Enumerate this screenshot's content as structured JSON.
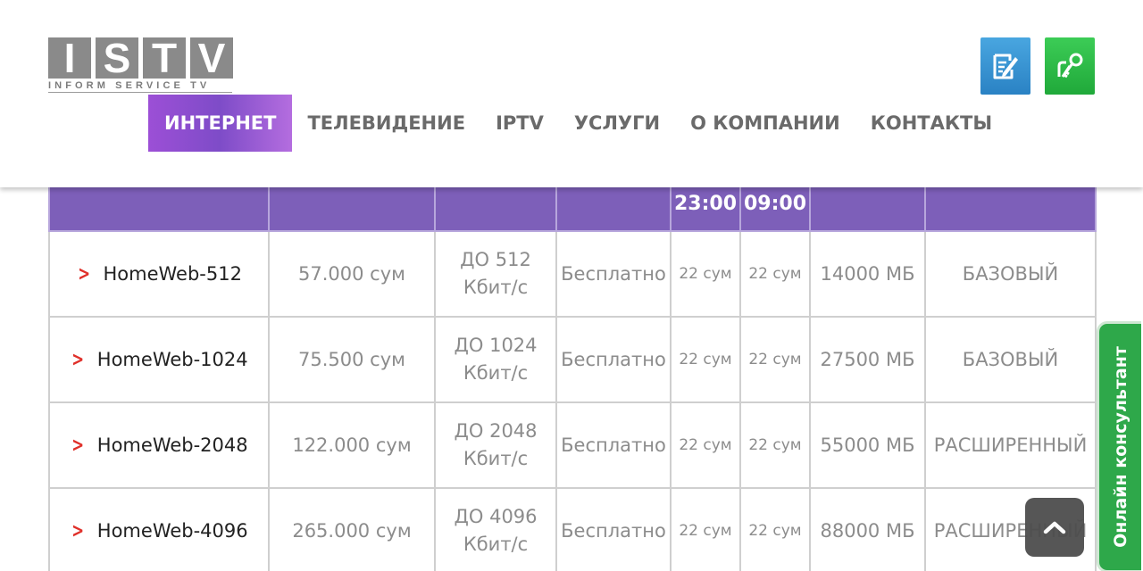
{
  "logo": {
    "letters": [
      "I",
      "S",
      "T",
      "V"
    ],
    "tagline": "INFORM SERVICE TV"
  },
  "header_icons": {
    "edit": "edit-document-icon",
    "key": "key-login-icon",
    "edit_color": "#2a82c4",
    "key_color": "#20a93a"
  },
  "nav": {
    "items": [
      {
        "label": "ИНТЕРНЕТ",
        "active": true
      },
      {
        "label": "ТЕЛЕВИДЕНИЕ",
        "active": false
      },
      {
        "label": "IPTV",
        "active": false
      },
      {
        "label": "УСЛУГИ",
        "active": false
      },
      {
        "label": "О КОМПАНИИ",
        "active": false
      },
      {
        "label": "КОНТАКТЫ",
        "active": false
      }
    ],
    "active_color": "#8e4dd0"
  },
  "table": {
    "header": [
      "",
      "",
      "",
      "",
      "23:00",
      "09:00",
      "",
      ""
    ],
    "header_color": "#7d5fb9",
    "rows": [
      {
        "name": "HomeWeb-512",
        "price": "57.000 сум",
        "speed": "ДО 512 Кбит/с",
        "connection": "Бесплатно",
        "rate_a": "22 сум",
        "rate_b": "22 сум",
        "traffic": "14000 МБ",
        "package": "БАЗОВЫЙ"
      },
      {
        "name": "HomeWeb-1024",
        "price": "75.500 сум",
        "speed": "ДО 1024 Кбит/с",
        "connection": "Бесплатно",
        "rate_a": "22 сум",
        "rate_b": "22 сум",
        "traffic": "27500 МБ",
        "package": "БАЗОВЫЙ"
      },
      {
        "name": "HomeWeb-2048",
        "price": "122.000 сум",
        "speed": "ДО 2048 Кбит/с",
        "connection": "Бесплатно",
        "rate_a": "22 сум",
        "rate_b": "22 сум",
        "traffic": "55000 МБ",
        "package": "РАСШИРЕННЫЙ"
      },
      {
        "name": "HomeWeb-4096",
        "price": "265.000 сум",
        "speed": "ДО 4096 Кбит/с",
        "connection": "Бесплатно",
        "rate_a": "22 сум",
        "rate_b": "22 сум",
        "traffic": "88000 МБ",
        "package": "РАСШИРЕННЫЙ"
      }
    ]
  },
  "consultant": {
    "label": "Онлайн консультант",
    "color": "#2ea84a"
  },
  "scroll_up": {
    "icon": "chevron-up-icon"
  }
}
